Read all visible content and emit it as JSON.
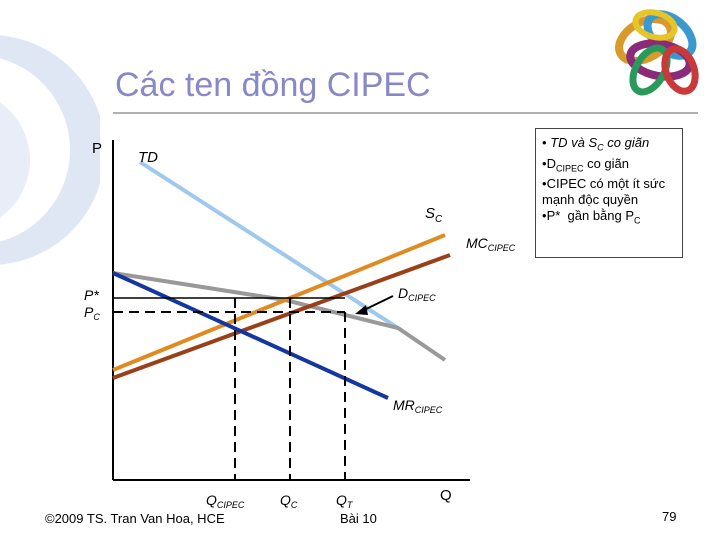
{
  "slide": {
    "title": "Các ten đồng CIPEC",
    "footer_copyright": "©2009 TS. Tran Van Hoa, HCE",
    "footer_lesson": "Bài 10",
    "page_number": "79"
  },
  "notes": [
    {
      "bullet": "•",
      "text": "TD và S",
      "sub": "C",
      "rest": " co giãn",
      "italic": true
    },
    {
      "bullet": "•",
      "text": "D",
      "sub": "CIPEC",
      "rest": " co giãn",
      "italic": false
    },
    {
      "bullet": "•",
      "text": "CIPEC có một ít sức mạnh độc quyền",
      "sub": "",
      "rest": "",
      "italic": false
    },
    {
      "bullet": "•",
      "text": "P*  gần bằng P",
      "sub": "C",
      "rest": "",
      "italic": false
    }
  ],
  "diagram": {
    "axis_y_label": "P",
    "axis_x_label": "Q",
    "labels": {
      "td": "TD",
      "sc_main": "S",
      "sc_sub": "C",
      "mc_main": "MC",
      "mc_sub": "CIPEC",
      "d_main": "D",
      "d_sub": "CIPEC",
      "mr_main": "MR",
      "mr_sub": "CIPEC",
      "p_star": "P*",
      "pc_main": "P",
      "pc_sub": "C",
      "q_cipec_main": "Q",
      "q_cipec_sub": "CIPEC",
      "qc_main": "Q",
      "qc_sub": "C",
      "qt_main": "Q",
      "qt_sub": "T"
    },
    "colors": {
      "td": "#9ec8ec",
      "sc": "#e08a22",
      "mc": "#9a4018",
      "d": "#999999",
      "mr": "#1436a0",
      "title": "#8888c8"
    }
  }
}
